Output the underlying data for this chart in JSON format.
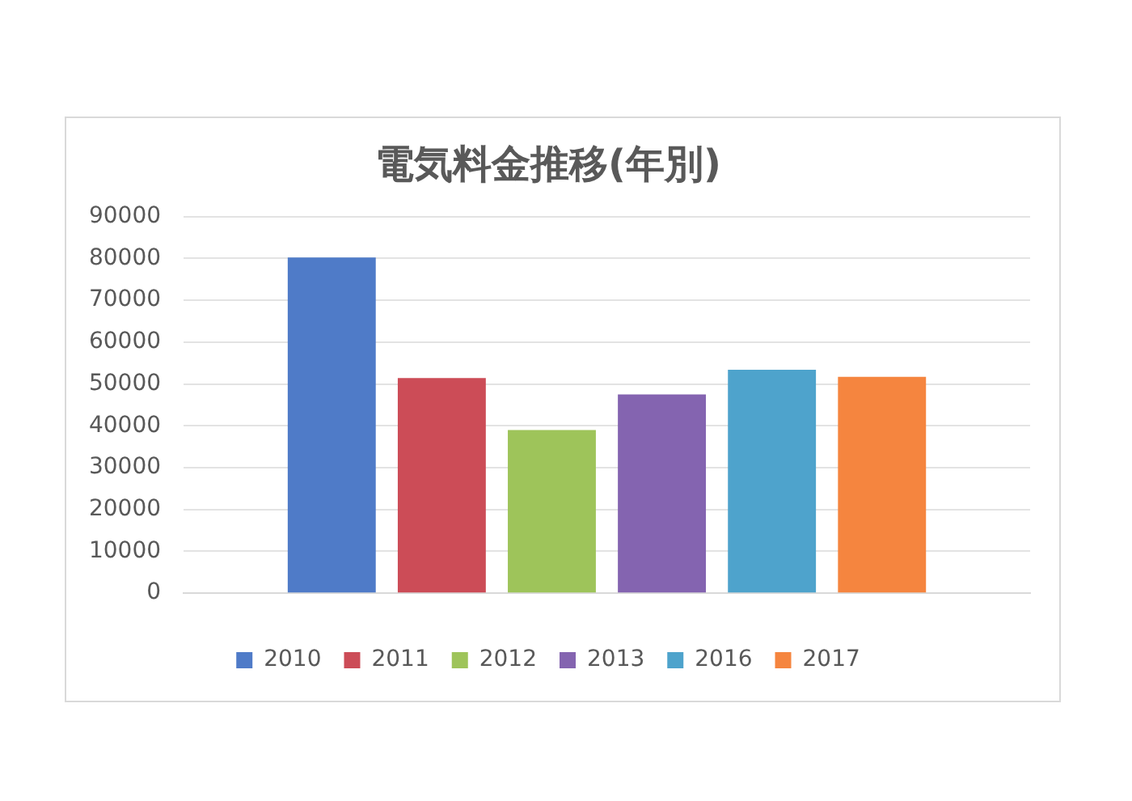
{
  "chart_data": {
    "type": "bar",
    "title": "電気料金推移(年別)",
    "categories": [
      null
    ],
    "series": [
      {
        "name": "2010",
        "color": "#4f7bc8",
        "values": [
          80200
        ]
      },
      {
        "name": "2011",
        "color": "#cc4c57",
        "values": [
          51400
        ]
      },
      {
        "name": "2012",
        "color": "#9ec45a",
        "values": [
          39000
        ]
      },
      {
        "name": "2013",
        "color": "#8464b0",
        "values": [
          47500
        ]
      },
      {
        "name": "2016",
        "color": "#4ea3cc",
        "values": [
          53400
        ]
      },
      {
        "name": "2017",
        "color": "#f5853f",
        "values": [
          51700
        ]
      }
    ],
    "ylim": [
      0,
      90000
    ],
    "yticks": [
      0,
      10000,
      20000,
      30000,
      40000,
      50000,
      60000,
      70000,
      80000,
      90000
    ],
    "grid": "y",
    "legend": "bottom"
  }
}
